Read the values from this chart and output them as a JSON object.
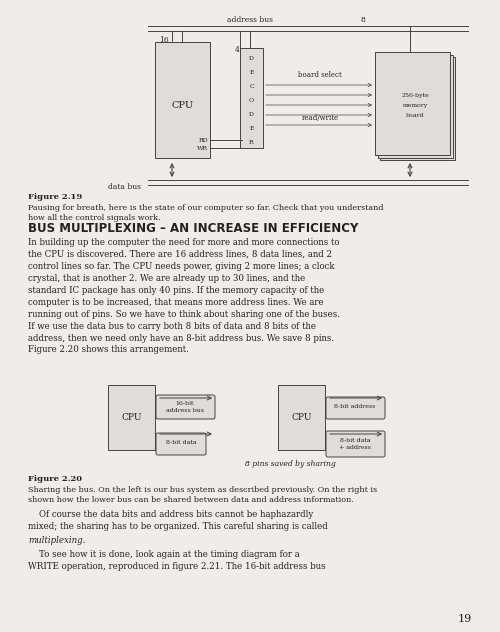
{
  "bg_color": "#f0ede8",
  "fig_width": 5.0,
  "fig_height": 6.32,
  "title": "BUS MULTIPLEXING – AN INCREASE IN EFFICIENCY",
  "fig219_caption_bold": "Figure 2.19",
  "fig219_caption_text": "Pausing for breath, here is the state of our computer so far. Check that you understand\nhow all the control signals work.",
  "fig220_caption_bold": "Figure 2.20",
  "fig220_caption_text": "Sharing the bus. On the left is our bus system as described previously. On the right is\nshown how the lower bus can be shared between data and address information.",
  "body_text1": "In building up the computer the need for more and more connections to\nthe CPU is discovered. There are 16 address lines, 8 data lines, and 2\ncontrol lines so far. The CPU needs power, giving 2 more lines; a clock\ncrystal, that is another 2. We are already up to 30 lines, and the\nstandard IC package has only 40 pins. If the memory capacity of the\ncomputer is to be increased, that means more address lines. We are\nrunning out of pins. So we have to think about sharing one of the buses.\nIf we use the data bus to carry both 8 bits of data and 8 bits of the\naddress, then we need only have an 8-bit address bus. We save 8 pins.\nFigure 2.20 shows this arrangement.",
  "body_text2a": "    Of course the data bits and address bits cannot be haphazardly\nmixed; the sharing has to be organized. This careful sharing is called",
  "body_text2b": "multiplexing.",
  "body_text3": "    To see how it is done, look again at the timing diagram for a\nWRITE operation, reproduced in figure 2.21. The 16-bit address bus",
  "page_number": "19"
}
